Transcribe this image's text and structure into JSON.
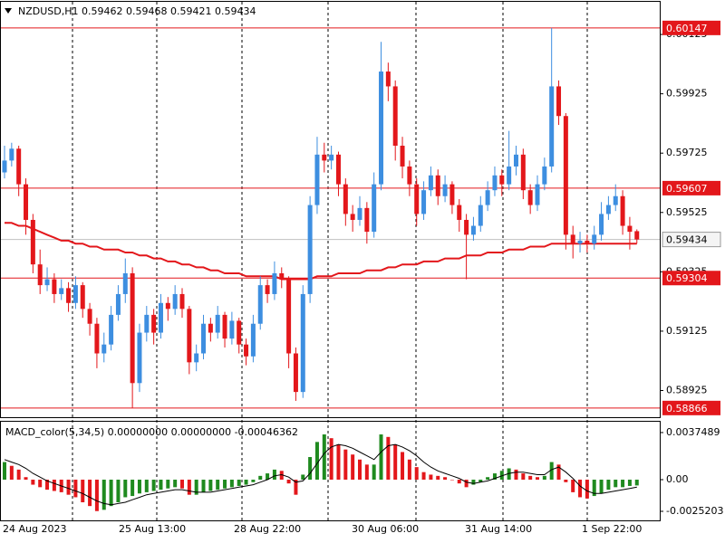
{
  "chart_data": [
    {
      "type": "candlestick",
      "title": "NZDUSD,H1  0.59462 0.59468 0.59421 0.59434",
      "up_color": "#3d8ee0",
      "down_color": "#e3171b",
      "open": [
        0.5966,
        0.597,
        0.5974,
        0.5962,
        0.595,
        0.5935,
        0.5928,
        0.593,
        0.5925,
        0.5927,
        0.5922,
        0.5928,
        0.592,
        0.5915,
        0.5905,
        0.5908,
        0.5918,
        0.5925,
        0.5932,
        0.5895,
        0.5912,
        0.5918,
        0.5912,
        0.5922,
        0.592,
        0.5925,
        0.592,
        0.5902,
        0.5905,
        0.5915,
        0.5912,
        0.5918,
        0.591,
        0.5916,
        0.5908,
        0.5904,
        0.5915,
        0.5928,
        0.5925,
        0.5932,
        0.593,
        0.5905,
        0.5892,
        0.5925,
        0.5955,
        0.5972,
        0.597,
        0.5972,
        0.5962,
        0.5952,
        0.595,
        0.5954,
        0.5946,
        0.5962,
        0.6,
        0.5995,
        0.5975,
        0.5968,
        0.5962,
        0.5952,
        0.596,
        0.5965,
        0.5958,
        0.5962,
        0.5955,
        0.595,
        0.5945,
        0.5948,
        0.5955,
        0.596,
        0.5965,
        0.5962,
        0.5968,
        0.5972,
        0.596,
        0.5955,
        0.5962,
        0.5968,
        0.5995,
        0.5985,
        0.5945,
        0.5942,
        0.5943,
        0.5942,
        0.5945,
        0.5952,
        0.5955,
        0.5958,
        0.5948,
        0.59462
      ],
      "high": [
        0.5975,
        0.5976,
        0.5975,
        0.5964,
        0.5952,
        0.594,
        0.5934,
        0.5932,
        0.593,
        0.5929,
        0.5931,
        0.5929,
        0.5922,
        0.5917,
        0.5912,
        0.5921,
        0.5928,
        0.5937,
        0.5934,
        0.5915,
        0.5921,
        0.592,
        0.5925,
        0.5924,
        0.5928,
        0.5927,
        0.5921,
        0.5908,
        0.5918,
        0.5917,
        0.5921,
        0.5919,
        0.5919,
        0.5917,
        0.591,
        0.5918,
        0.5931,
        0.593,
        0.5936,
        0.5934,
        0.5931,
        0.5907,
        0.5928,
        0.5958,
        0.5978,
        0.5976,
        0.5975,
        0.5973,
        0.5964,
        0.5955,
        0.5958,
        0.5956,
        0.5966,
        0.601,
        0.6003,
        0.5997,
        0.5978,
        0.597,
        0.5964,
        0.5963,
        0.5968,
        0.5967,
        0.5965,
        0.5963,
        0.5957,
        0.5952,
        0.5951,
        0.5958,
        0.5963,
        0.5968,
        0.5967,
        0.598,
        0.5975,
        0.5974,
        0.5962,
        0.5965,
        0.5971,
        0.60147,
        0.5997,
        0.5986,
        0.5948,
        0.5946,
        0.5945,
        0.5948,
        0.5956,
        0.5958,
        0.5962,
        0.596,
        0.5951,
        0.59468
      ],
      "low": [
        0.5964,
        0.5968,
        0.5958,
        0.5945,
        0.5932,
        0.5925,
        0.5926,
        0.5922,
        0.5923,
        0.5919,
        0.592,
        0.5917,
        0.5911,
        0.59,
        0.5902,
        0.5906,
        0.5916,
        0.5922,
        0.58866,
        0.5892,
        0.5909,
        0.5908,
        0.591,
        0.5916,
        0.5918,
        0.5917,
        0.5898,
        0.5899,
        0.5903,
        0.5909,
        0.591,
        0.5907,
        0.5908,
        0.5905,
        0.5901,
        0.5902,
        0.5913,
        0.5922,
        0.5923,
        0.5927,
        0.59,
        0.5889,
        0.589,
        0.5922,
        0.5952,
        0.5966,
        0.5967,
        0.5958,
        0.5948,
        0.5946,
        0.5948,
        0.5942,
        0.5944,
        0.596,
        0.599,
        0.597,
        0.5964,
        0.5958,
        0.5948,
        0.595,
        0.5958,
        0.5955,
        0.5956,
        0.5952,
        0.5946,
        0.593,
        0.5943,
        0.5946,
        0.5953,
        0.5958,
        0.5958,
        0.596,
        0.5965,
        0.5957,
        0.5952,
        0.5953,
        0.596,
        0.5966,
        0.5982,
        0.594,
        0.5937,
        0.5939,
        0.5939,
        0.594,
        0.5943,
        0.595,
        0.5953,
        0.5945,
        0.594,
        0.59421
      ],
      "close": [
        0.597,
        0.5974,
        0.5962,
        0.595,
        0.5935,
        0.5928,
        0.593,
        0.5925,
        0.5927,
        0.5922,
        0.5928,
        0.592,
        0.5915,
        0.5905,
        0.5908,
        0.5918,
        0.5925,
        0.5932,
        0.5895,
        0.5912,
        0.5918,
        0.5912,
        0.5922,
        0.592,
        0.5925,
        0.592,
        0.5902,
        0.5905,
        0.5915,
        0.5912,
        0.5918,
        0.591,
        0.5916,
        0.5908,
        0.5904,
        0.5915,
        0.5928,
        0.5925,
        0.5932,
        0.593,
        0.5905,
        0.5892,
        0.5925,
        0.5955,
        0.5972,
        0.597,
        0.5972,
        0.5962,
        0.5952,
        0.595,
        0.5954,
        0.5946,
        0.5962,
        0.6,
        0.5995,
        0.5975,
        0.5968,
        0.5962,
        0.5952,
        0.596,
        0.5965,
        0.5958,
        0.5962,
        0.5955,
        0.595,
        0.5945,
        0.5948,
        0.5955,
        0.596,
        0.5965,
        0.5962,
        0.5968,
        0.5972,
        0.596,
        0.5955,
        0.5962,
        0.5968,
        0.5995,
        0.5985,
        0.5945,
        0.5942,
        0.5943,
        0.5942,
        0.5945,
        0.5952,
        0.5955,
        0.5958,
        0.5948,
        0.5946,
        0.59434
      ],
      "ma": {
        "color": "#e3171b",
        "values": [
          0.5949,
          0.5949,
          0.5948,
          0.5948,
          0.5947,
          0.5946,
          0.5945,
          0.5944,
          0.5943,
          0.5943,
          0.5942,
          0.5942,
          0.5941,
          0.5941,
          0.594,
          0.594,
          0.594,
          0.5939,
          0.5939,
          0.5938,
          0.5938,
          0.5937,
          0.5937,
          0.5936,
          0.5936,
          0.5935,
          0.5935,
          0.5934,
          0.5934,
          0.5933,
          0.5933,
          0.5932,
          0.5932,
          0.5932,
          0.5931,
          0.5931,
          0.5931,
          0.5931,
          0.5931,
          0.593,
          0.593,
          0.593,
          0.593,
          0.593,
          0.5931,
          0.5931,
          0.5931,
          0.5932,
          0.5932,
          0.5932,
          0.5932,
          0.5933,
          0.5933,
          0.5933,
          0.5934,
          0.5934,
          0.5935,
          0.5935,
          0.5935,
          0.5936,
          0.5936,
          0.5936,
          0.5937,
          0.5937,
          0.5937,
          0.5938,
          0.5938,
          0.5938,
          0.5939,
          0.5939,
          0.5939,
          0.594,
          0.594,
          0.594,
          0.5941,
          0.5941,
          0.5941,
          0.5942,
          0.5942,
          0.5942,
          0.5942,
          0.5942,
          0.5942,
          0.5942,
          0.5942,
          0.5942,
          0.5942,
          0.5942,
          0.5942,
          0.5942
        ]
      },
      "ylim": [
        0.58835,
        0.60235
      ],
      "yticks": [
        0.58925,
        0.59125,
        0.59325,
        0.59525,
        0.59725,
        0.59925,
        0.60125
      ],
      "levels": [
        {
          "value": 0.60147,
          "color": "#e3171b"
        },
        {
          "value": 0.59607,
          "color": "#e3171b"
        },
        {
          "value": 0.59304,
          "color": "#e3171b"
        },
        {
          "value": 0.58866,
          "color": "#e3171b"
        }
      ],
      "current_price": 0.59434,
      "xtick_labels": [
        "24 Aug 2023",
        "25 Aug 13:00",
        "28 Aug 22:00",
        "30 Aug 06:00",
        "31 Aug 14:00",
        "1 Sep 22:00"
      ]
    },
    {
      "type": "macd",
      "title": "MACD_color(5,34,5) 0.00000000 0.00000000 -0.00046362",
      "up_color": "#1f8a1f",
      "down_color": "#e3171b",
      "values": [
        0.0014,
        0.0011,
        0.0008,
        0.0002,
        -0.0004,
        -0.0006,
        -0.0008,
        -0.0009,
        -0.001,
        -0.0012,
        -0.0014,
        -0.0018,
        -0.0021,
        -0.0025,
        -0.0024,
        -0.0021,
        -0.0018,
        -0.0014,
        -0.0013,
        -0.0011,
        -0.001,
        -0.0009,
        -0.0008,
        -0.0007,
        -0.0006,
        -0.0007,
        -0.0012,
        -0.0012,
        -0.001,
        -0.0009,
        -0.0008,
        -0.0007,
        -0.0006,
        -0.0005,
        -0.0004,
        -0.0002,
        0.0003,
        0.0005,
        0.0008,
        0.0007,
        -0.0003,
        -0.0012,
        0.0004,
        0.0018,
        0.003,
        0.0036,
        0.0033,
        0.0028,
        0.0024,
        0.002,
        0.0016,
        0.0012,
        0.0012,
        0.0036,
        0.0034,
        0.0028,
        0.0022,
        0.0016,
        0.001,
        0.0006,
        0.0004,
        0.0003,
        0.0002,
        0.0,
        -0.0003,
        -0.0006,
        -0.0004,
        -0.0002,
        0.0002,
        0.0005,
        0.0007,
        0.0009,
        0.0008,
        0.0005,
        0.0003,
        0.0002,
        0.0003,
        0.0014,
        0.0012,
        -0.0002,
        -0.001,
        -0.0014,
        -0.0015,
        -0.0013,
        -0.0011,
        -0.0008,
        -0.0006,
        -0.0006,
        -0.0005,
        -0.00046
      ],
      "signal": {
        "color": "#000000",
        "values": [
          0.0016,
          0.0014,
          0.0012,
          0.0009,
          0.0005,
          0.0002,
          -0.0001,
          -0.0003,
          -0.0005,
          -0.0007,
          -0.0009,
          -0.0011,
          -0.0014,
          -0.0017,
          -0.0019,
          -0.002,
          -0.0019,
          -0.0018,
          -0.0016,
          -0.0014,
          -0.0012,
          -0.0011,
          -0.001,
          -0.0009,
          -0.0008,
          -0.0008,
          -0.0009,
          -0.001,
          -0.001,
          -0.001,
          -0.0009,
          -0.0008,
          -0.0007,
          -0.0006,
          -0.0005,
          -0.0004,
          -0.0002,
          0.0,
          0.0003,
          0.0004,
          0.0002,
          -0.0002,
          -0.0001,
          0.0005,
          0.0013,
          0.0021,
          0.0026,
          0.0028,
          0.0027,
          0.0025,
          0.0022,
          0.0019,
          0.0016,
          0.0022,
          0.0027,
          0.0028,
          0.0026,
          0.0023,
          0.0019,
          0.0014,
          0.001,
          0.0007,
          0.0005,
          0.0003,
          0.0001,
          -0.0002,
          -0.0003,
          -0.0002,
          -0.0001,
          0.0001,
          0.0003,
          0.0005,
          0.0006,
          0.0006,
          0.0005,
          0.0004,
          0.0004,
          0.0008,
          0.001,
          0.0006,
          0.0001,
          -0.0005,
          -0.0009,
          -0.0011,
          -0.0011,
          -0.001,
          -0.0009,
          -0.0008,
          -0.0007,
          -0.0006
        ]
      },
      "ylim": [
        -0.00324,
        0.00461
      ],
      "yticks": [
        -0.0025203,
        {
          "value": 0,
          "label": "0.00"
        },
        0.0037489
      ]
    }
  ]
}
